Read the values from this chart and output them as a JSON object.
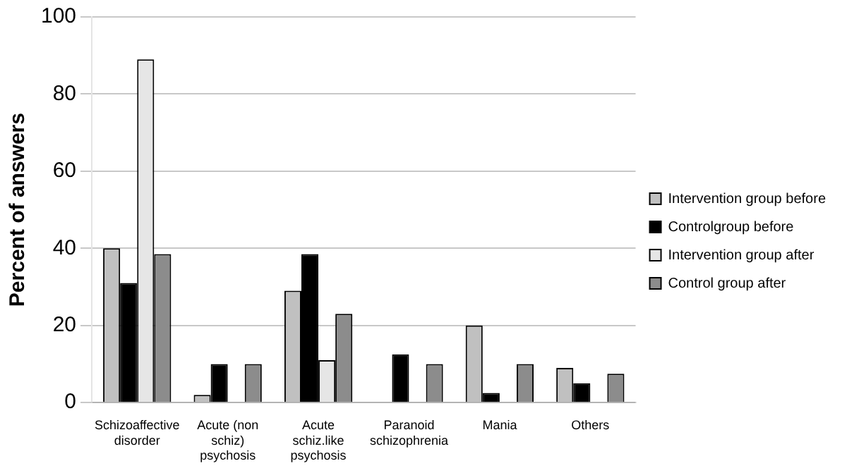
{
  "chart_data": {
    "type": "bar",
    "ylabel": "Percent of answers",
    "categories": [
      "Schizoaffective disorder",
      "Acute (non schiz) psychosis",
      "Acute schiz.like psychosis",
      "Paranoid schizophrenia",
      "Mania",
      "Others"
    ],
    "series": [
      {
        "name": "Intervention group before",
        "color": "#c0c0c0",
        "values": [
          40,
          2,
          29,
          0,
          20,
          9
        ]
      },
      {
        "name": "Controlgroup before",
        "color": "#000000",
        "values": [
          31,
          10,
          38.5,
          12.5,
          2.5,
          5
        ]
      },
      {
        "name": "Intervention group after",
        "color": "#e6e6e6",
        "values": [
          89,
          0,
          11,
          0,
          0,
          0
        ]
      },
      {
        "name": "Control group after",
        "color": "#8c8c8c",
        "values": [
          38.5,
          10,
          23,
          10,
          10,
          7.5
        ]
      }
    ],
    "ylim": [
      0,
      100
    ],
    "yticks": [
      0,
      20,
      40,
      60,
      80,
      100
    ],
    "grid": "y",
    "legend": "right"
  }
}
